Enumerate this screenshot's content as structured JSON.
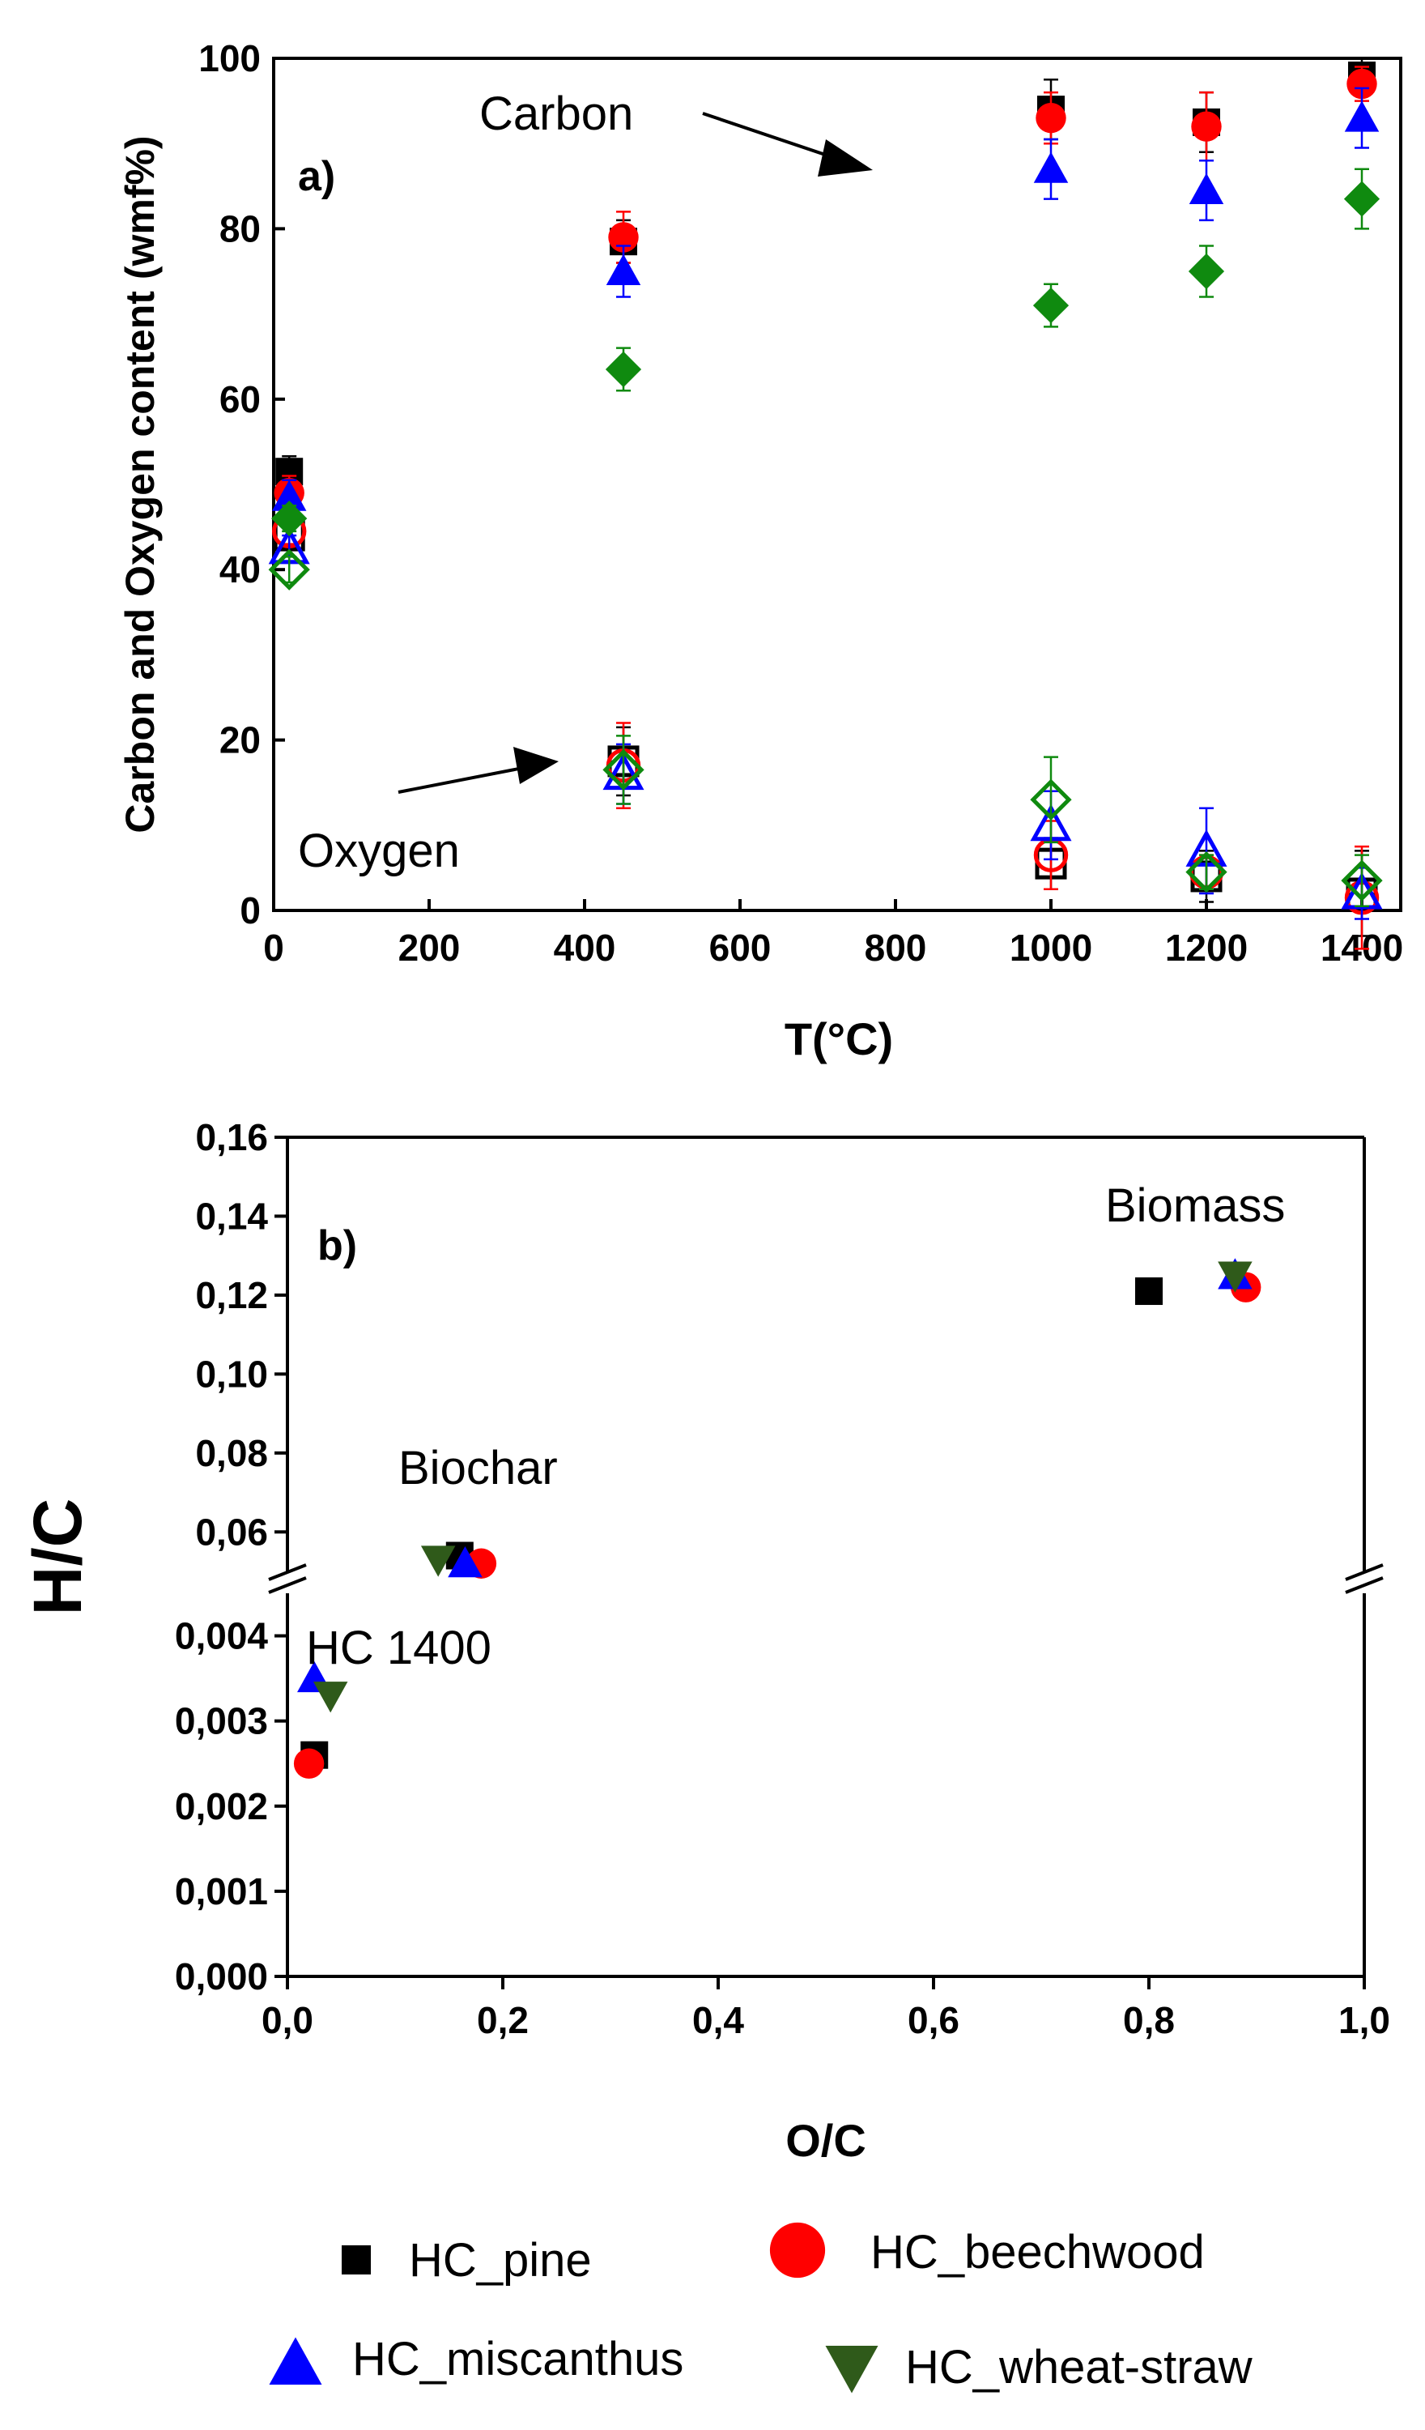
{
  "chart_data": [
    {
      "panel": "a)",
      "type": "scatter",
      "xlabel": "T(°C)",
      "ylabel": "Carbon and Oxygen content (wmf%)",
      "xlim": [
        0,
        1450
      ],
      "ylim": [
        0,
        100
      ],
      "xticks": [
        "0",
        "200",
        "400",
        "600",
        "800",
        "1000",
        "1200",
        "1400"
      ],
      "yticks": [
        "0",
        "20",
        "40",
        "60",
        "80",
        "100"
      ],
      "annotations": [
        "Carbon",
        "Oxygen"
      ],
      "carbon_series": [
        {
          "name": "HC_pine",
          "marker": "square",
          "filled": true,
          "color": "#000000",
          "points": [
            {
              "x": 20,
              "y": 51.5,
              "err": 1.8
            },
            {
              "x": 450,
              "y": 78.5,
              "err": 2.5
            },
            {
              "x": 1000,
              "y": 94,
              "err": 3.5
            },
            {
              "x": 1200,
              "y": 92.5,
              "err": 3.5
            },
            {
              "x": 1400,
              "y": 98,
              "err": 2
            }
          ]
        },
        {
          "name": "HC_beechwood",
          "marker": "circle",
          "filled": true,
          "color": "#ff0000",
          "points": [
            {
              "x": 20,
              "y": 49,
              "err": 2
            },
            {
              "x": 450,
              "y": 79,
              "err": 3
            },
            {
              "x": 1000,
              "y": 93,
              "err": 3
            },
            {
              "x": 1200,
              "y": 92,
              "err": 4
            },
            {
              "x": 1400,
              "y": 97,
              "err": 2
            }
          ]
        },
        {
          "name": "HC_miscanthus",
          "marker": "triangle-up",
          "filled": true,
          "color": "#0000ff",
          "points": [
            {
              "x": 20,
              "y": 48.5,
              "err": 2
            },
            {
              "x": 450,
              "y": 75,
              "err": 3
            },
            {
              "x": 1000,
              "y": 87,
              "err": 3.5
            },
            {
              "x": 1200,
              "y": 84.5,
              "err": 3.5
            },
            {
              "x": 1400,
              "y": 93,
              "err": 3.5
            }
          ]
        },
        {
          "name": "HC_wheat-straw",
          "marker": "diamond",
          "filled": true,
          "color": "#0f8a0f",
          "points": [
            {
              "x": 20,
              "y": 46,
              "err": 1.5
            },
            {
              "x": 450,
              "y": 63.5,
              "err": 2.5
            },
            {
              "x": 1000,
              "y": 71,
              "err": 2.5
            },
            {
              "x": 1200,
              "y": 75,
              "err": 3
            },
            {
              "x": 1400,
              "y": 83.5,
              "err": 3.5
            }
          ]
        }
      ],
      "oxygen_series": [
        {
          "name": "HC_pine",
          "marker": "square",
          "filled": false,
          "color": "#000000",
          "points": [
            {
              "x": 20,
              "y": 44,
              "err": 1.5
            },
            {
              "x": 450,
              "y": 17.5,
              "err": 4
            },
            {
              "x": 1000,
              "y": 5.5,
              "err": 3
            },
            {
              "x": 1200,
              "y": 4,
              "err": 3
            },
            {
              "x": 1400,
              "y": 2,
              "err": 5
            }
          ]
        },
        {
          "name": "HC_beechwood",
          "marker": "circle",
          "filled": false,
          "color": "#ff0000",
          "points": [
            {
              "x": 20,
              "y": 44.5,
              "err": 1.5
            },
            {
              "x": 450,
              "y": 17,
              "err": 5
            },
            {
              "x": 1000,
              "y": 6.5,
              "err": 4
            },
            {
              "x": 1200,
              "y": 4.5,
              "err": 2
            },
            {
              "x": 1400,
              "y": 1.5,
              "err": 6
            }
          ]
        },
        {
          "name": "HC_miscanthus",
          "marker": "triangle-up",
          "filled": false,
          "color": "#0000ff",
          "points": [
            {
              "x": 20,
              "y": 42.5,
              "err": 1.5
            },
            {
              "x": 450,
              "y": 16,
              "err": 3.5
            },
            {
              "x": 1000,
              "y": 10,
              "err": 4
            },
            {
              "x": 1200,
              "y": 7,
              "err": 5
            },
            {
              "x": 1400,
              "y": 2,
              "err": 3
            }
          ]
        },
        {
          "name": "HC_wheat-straw",
          "marker": "diamond",
          "filled": false,
          "color": "#0f8a0f",
          "points": [
            {
              "x": 20,
              "y": 40,
              "err": 1.5
            },
            {
              "x": 450,
              "y": 16.5,
              "err": 4
            },
            {
              "x": 1000,
              "y": 13,
              "err": 5
            },
            {
              "x": 1200,
              "y": 4.5,
              "err": 2
            },
            {
              "x": 1400,
              "y": 3.5,
              "err": 3
            }
          ]
        }
      ]
    },
    {
      "panel": "b)",
      "type": "scatter",
      "xlabel": "O/C",
      "ylabel": "H/C",
      "xlim": [
        0,
        1
      ],
      "ylim_lower": [
        0,
        0.0045
      ],
      "ylim_upper": [
        0.05,
        0.16
      ],
      "axis_break": true,
      "xticks": [
        "0,0",
        "0,2",
        "0,4",
        "0,6",
        "0,8",
        "1,0"
      ],
      "yticks_lower": [
        "0,000",
        "0,001",
        "0,002",
        "0,003",
        "0,004"
      ],
      "yticks_upper": [
        "0,06",
        "0,08",
        "0,10",
        "0,12",
        "0,14",
        "0,16"
      ],
      "annotations": [
        "Biomass",
        "Biochar",
        "HC 1400"
      ],
      "series": [
        {
          "name": "HC_pine",
          "marker": "square",
          "color": "#000000",
          "points": [
            {
              "x": 0.8,
              "y": 0.121
            },
            {
              "x": 0.16,
              "y": 0.054
            },
            {
              "x": 0.025,
              "y": 0.0026
            }
          ]
        },
        {
          "name": "HC_beechwood",
          "marker": "circle",
          "color": "#ff0000",
          "points": [
            {
              "x": 0.89,
              "y": 0.122
            },
            {
              "x": 0.18,
              "y": 0.052
            },
            {
              "x": 0.02,
              "y": 0.0025
            }
          ]
        },
        {
          "name": "HC_miscanthus",
          "marker": "triangle-up",
          "color": "#0000ff",
          "points": [
            {
              "x": 0.88,
              "y": 0.125
            },
            {
              "x": 0.165,
              "y": 0.052
            },
            {
              "x": 0.025,
              "y": 0.0035
            }
          ]
        },
        {
          "name": "HC_wheat-straw",
          "marker": "triangle-down",
          "color": "#2f5a1a",
          "points": [
            {
              "x": 0.88,
              "y": 0.125
            },
            {
              "x": 0.14,
              "y": 0.053
            },
            {
              "x": 0.04,
              "y": 0.0033
            }
          ]
        }
      ]
    }
  ],
  "legend": [
    {
      "label": "HC_pine",
      "marker": "square",
      "color": "#000000"
    },
    {
      "label": "HC_beechwood",
      "marker": "circle",
      "color": "#ff0000"
    },
    {
      "label": "HC_miscanthus",
      "marker": "triangle-up",
      "color": "#0000ff"
    },
    {
      "label": "HC_wheat-straw",
      "marker": "triangle-down",
      "color": "#2f5a1a"
    }
  ]
}
